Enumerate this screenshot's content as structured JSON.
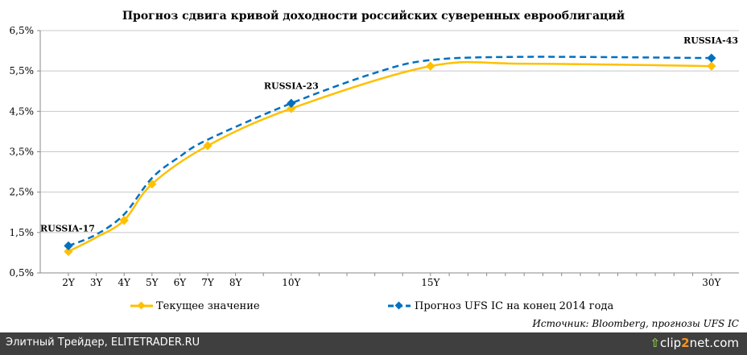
{
  "chart_data": {
    "type": "line",
    "title": "Прогноз сдвига кривой доходности российских суверенных еврооблигаций",
    "xlabel": "",
    "ylabel": "",
    "ylim": [
      0.5,
      6.5
    ],
    "y_ticks": [
      "0,5%",
      "1,5%",
      "2,5%",
      "3,5%",
      "4,5%",
      "5,5%",
      "6,5%"
    ],
    "y_tick_values": [
      0.5,
      1.5,
      2.5,
      3.5,
      4.5,
      5.5,
      6.5
    ],
    "x_ticks": [
      "2Y",
      "3Y",
      "4Y",
      "5Y",
      "6Y",
      "7Y",
      "8Y",
      "10Y",
      "15Y",
      "30Y"
    ],
    "x_tick_values": [
      2,
      3,
      4,
      5,
      6,
      7,
      8,
      10,
      15,
      30
    ],
    "grid": true,
    "legend_placement": "bottom",
    "series": [
      {
        "name": "Текущее значение",
        "color": "#ffc000",
        "dashed": false,
        "x": [
          2,
          3,
          4,
          5,
          7,
          10,
          15,
          20,
          30
        ],
        "values": [
          1.03,
          1.38,
          1.8,
          2.7,
          3.65,
          4.57,
          5.62,
          5.68,
          5.62
        ],
        "markers": [
          true,
          false,
          true,
          true,
          true,
          true,
          true,
          false,
          true
        ]
      },
      {
        "name": "Прогноз UFS IC на конец 2014 года",
        "color": "#0070c0",
        "dashed": true,
        "x": [
          2,
          3,
          4,
          5,
          6,
          7,
          10,
          13,
          15,
          20,
          30
        ],
        "values": [
          1.17,
          1.45,
          1.95,
          2.85,
          3.38,
          3.8,
          4.7,
          5.45,
          5.77,
          5.85,
          5.82
        ],
        "markers": [
          true,
          false,
          false,
          false,
          false,
          false,
          true,
          false,
          false,
          false,
          true
        ]
      }
    ],
    "annotations": [
      {
        "text": "RUSSIA-17",
        "x": 2,
        "y": 1.17
      },
      {
        "text": "RUSSIA-23",
        "x": 10,
        "y": 4.7
      },
      {
        "text": "RUSSIA-43",
        "x": 30,
        "y": 5.82
      }
    ],
    "source": "Источник: Bloomberg, прогнозы UFS IC"
  },
  "footer": {
    "text": "Элитный Трейдер, ELITETRADER.RU",
    "logo_a": "clip",
    "logo_b": "2",
    "logo_c": "net.com"
  }
}
